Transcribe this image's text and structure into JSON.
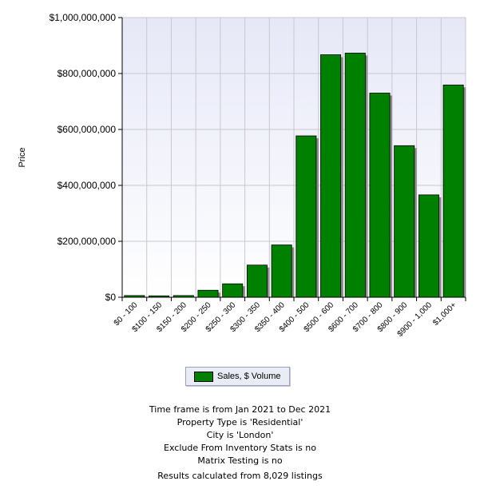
{
  "chart_data": {
    "type": "bar",
    "title": "",
    "xlabel": "",
    "ylabel": "Price",
    "categories": [
      "$0 - 100",
      "$100 - 150",
      "$150 - 200",
      "$200 - 250",
      "$250 - 300",
      "$300 - 350",
      "$350 - 400",
      "$400 - 500",
      "$500 - 600",
      "$600 - 700",
      "$700 - 800",
      "$800 - 900",
      "$900 - 1,000",
      "$1,000+"
    ],
    "series": [
      {
        "name": "Sales, $ Volume",
        "values": [
          6000000,
          5000000,
          6000000,
          25000000,
          48000000,
          115000000,
          187000000,
          577000000,
          867000000,
          873000000,
          730000000,
          542000000,
          366000000,
          759000000
        ]
      }
    ],
    "ylim": [
      0,
      1000000000
    ],
    "yticks": [
      0,
      200000000,
      400000000,
      600000000,
      800000000,
      1000000000
    ],
    "ytick_labels": [
      "$0",
      "$200,000,000",
      "$400,000,000",
      "$600,000,000",
      "$800,000,000",
      "$1,000,000,000"
    ],
    "grid": true,
    "bar_color": "#008000",
    "legend_position": "bottom"
  },
  "legend": {
    "label": "Sales, $ Volume",
    "color": "#008000"
  },
  "notes": {
    "timeframe": "Time frame is from Jan 2021 to Dec 2021",
    "property_type": "Property Type is 'Residential'",
    "city": "City is 'London'",
    "exclude": "Exclude From Inventory Stats is no",
    "matrix": "Matrix Testing is no",
    "results": "Results calculated from 8,029 listings"
  }
}
